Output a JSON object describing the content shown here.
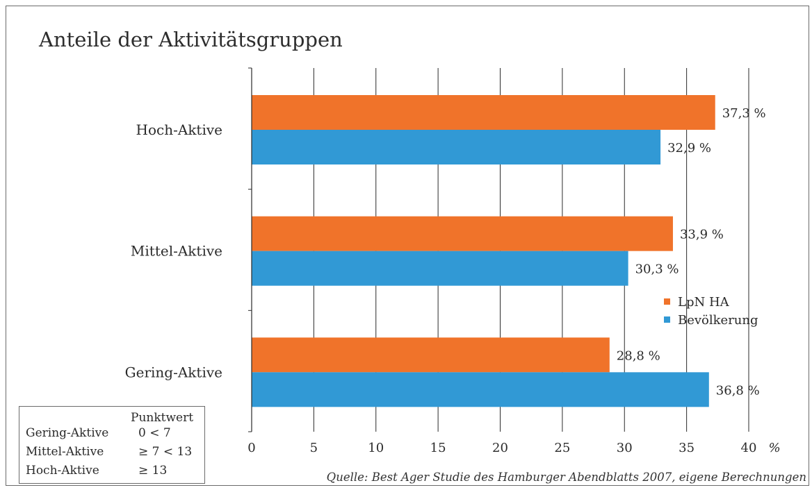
{
  "chart_data": {
    "type": "bar",
    "orientation": "horizontal",
    "title": "Anteile der Aktivitätsgruppen",
    "categories": [
      "Hoch-Aktive",
      "Mittel-Aktive",
      "Gering-Aktive"
    ],
    "series": [
      {
        "name": "LpN HA",
        "color": "#f0732a",
        "values": [
          37.3,
          33.9,
          28.8
        ],
        "labels": [
          "37,3 %",
          "33,9 %",
          "28,8 %"
        ]
      },
      {
        "name": "Bevölkerung",
        "color": "#3199d5",
        "values": [
          32.9,
          30.3,
          36.8
        ],
        "labels": [
          "32,9 %",
          "30,3 %",
          "36,8 %"
        ]
      }
    ],
    "xlim": [
      0,
      40
    ],
    "xticks": [
      "0",
      "5",
      "10",
      "15",
      "20",
      "25",
      "30",
      "35",
      "40"
    ],
    "xunit": "%",
    "grid": true,
    "legend_position": "right"
  },
  "scoring": {
    "header": "Punktwert",
    "rows": [
      {
        "label": "Gering-Aktive",
        "value": "0 < 7"
      },
      {
        "label": "Mittel-Aktive",
        "value": "≥ 7 < 13"
      },
      {
        "label": "Hoch-Aktive",
        "value": "≥ 13"
      }
    ]
  },
  "source": "Quelle: Best Ager Studie des Hamburger Abendblatts 2007, eigene Berechnungen"
}
